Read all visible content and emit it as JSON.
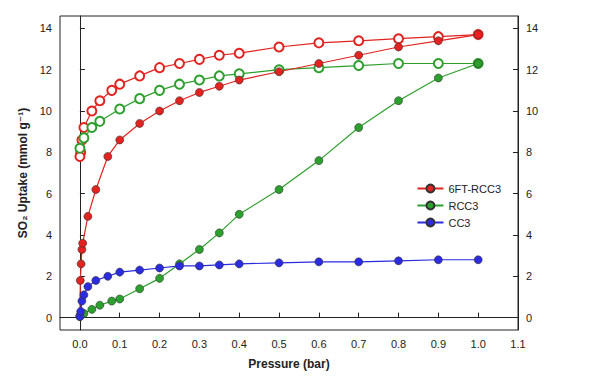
{
  "chart_data": {
    "type": "line",
    "x_label": "Pressure (bar)",
    "y_label": "SO₂ Uptake (mmol g⁻¹)",
    "xlim": [
      -0.05,
      1.1
    ],
    "xticks": [
      {
        "value": 0,
        "label": "0.0"
      },
      0.1,
      0.2,
      0.3,
      0.4,
      0.5,
      0.6,
      0.7,
      0.8,
      0.9,
      {
        "value": 1,
        "label": "1.0"
      },
      1.1
    ],
    "ylim": [
      -0.6,
      14.6
    ],
    "yticks": [
      0,
      2,
      4,
      6,
      8,
      10,
      12,
      14
    ],
    "y2lim": [
      -0.6,
      14.6
    ],
    "y2ticks": [
      0,
      2,
      4,
      6,
      8,
      10,
      12,
      14
    ],
    "grid": false,
    "legend": "right",
    "series": [
      {
        "name": "6FT-RCC3",
        "color": "#e3231f",
        "marker": "circle",
        "x": [
          0,
          0.001,
          0.003,
          0.005,
          0.007,
          0.02,
          0.04,
          0.07,
          0.1,
          0.15,
          0.2,
          0.25,
          0.3,
          0.35,
          0.4,
          0.5,
          0.6,
          0.7,
          0.8,
          0.9,
          1.0
        ],
        "values": [
          0.1,
          1.8,
          2.6,
          3.3,
          3.6,
          4.9,
          6.2,
          7.8,
          8.6,
          9.4,
          10.0,
          10.5,
          10.9,
          11.2,
          11.5,
          11.9,
          12.3,
          12.7,
          13.1,
          13.4,
          13.7
        ],
        "desorption": {
          "marker": "hollow",
          "x": [
            1.0,
            0.9,
            0.8,
            0.7,
            0.6,
            0.5,
            0.4,
            0.35,
            0.3,
            0.25,
            0.2,
            0.15,
            0.1,
            0.08,
            0.05,
            0.03,
            0.01,
            0.005,
            0.002,
            0.0
          ],
          "values": [
            13.7,
            13.6,
            13.5,
            13.4,
            13.3,
            13.1,
            12.8,
            12.7,
            12.5,
            12.3,
            12.1,
            11.7,
            11.3,
            11.0,
            10.5,
            10.0,
            9.2,
            8.6,
            8.0,
            7.8
          ]
        }
      },
      {
        "name": "RCC3",
        "color": "#2ca02c",
        "marker": "circle",
        "x": [
          0,
          0.01,
          0.03,
          0.05,
          0.08,
          0.1,
          0.15,
          0.2,
          0.25,
          0.3,
          0.35,
          0.4,
          0.5,
          0.6,
          0.7,
          0.8,
          0.9,
          1.0
        ],
        "values": [
          0.05,
          0.2,
          0.4,
          0.6,
          0.8,
          0.9,
          1.4,
          1.9,
          2.6,
          3.3,
          4.1,
          5.0,
          6.2,
          7.6,
          9.2,
          10.5,
          11.6,
          12.3
        ],
        "desorption": {
          "marker": "hollow",
          "x": [
            1.0,
            0.9,
            0.8,
            0.7,
            0.6,
            0.5,
            0.4,
            0.35,
            0.3,
            0.25,
            0.2,
            0.15,
            0.1,
            0.05,
            0.03,
            0.01,
            0.0
          ],
          "values": [
            12.3,
            12.3,
            12.3,
            12.2,
            12.1,
            12.0,
            11.8,
            11.7,
            11.5,
            11.3,
            11.0,
            10.6,
            10.1,
            9.5,
            9.2,
            8.7,
            8.2
          ]
        }
      },
      {
        "name": "CC3",
        "color": "#2b2be0",
        "marker": "circle",
        "x": [
          0,
          0.002,
          0.005,
          0.01,
          0.02,
          0.04,
          0.07,
          0.1,
          0.15,
          0.2,
          0.25,
          0.3,
          0.35,
          0.4,
          0.5,
          0.6,
          0.7,
          0.8,
          0.9,
          1.0
        ],
        "values": [
          0.05,
          0.3,
          0.8,
          1.1,
          1.5,
          1.8,
          2.0,
          2.2,
          2.3,
          2.4,
          2.5,
          2.5,
          2.55,
          2.6,
          2.65,
          2.7,
          2.7,
          2.75,
          2.8,
          2.8
        ]
      }
    ]
  }
}
